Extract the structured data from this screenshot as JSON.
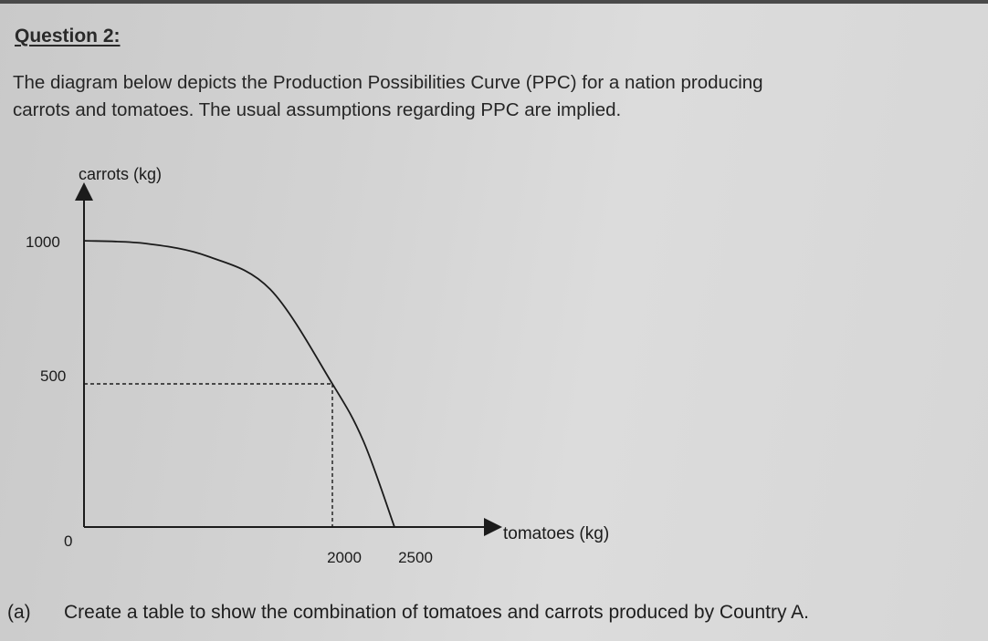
{
  "question": {
    "title": "Question 2:",
    "intro_lines": [
      "The diagram below depicts the Production Possibilities Curve (PPC) for a nation producing",
      "carrots and tomatoes. The usual assumptions regarding PPC are implied."
    ]
  },
  "chart_data": {
    "type": "line",
    "title": "",
    "xlabel": "tomatoes (kg)",
    "ylabel": "carrots (kg)",
    "origin_label": "0",
    "x_ticks": [
      "2000",
      "2500"
    ],
    "y_ticks": [
      "1000",
      "500"
    ],
    "xlim": [
      0,
      4800
    ],
    "ylim": [
      0,
      1150
    ],
    "grid": false,
    "series": [
      {
        "points": [
          {
            "x": 0,
            "y": 1000
          },
          {
            "x": 500,
            "y": 990
          },
          {
            "x": 1000,
            "y": 945
          },
          {
            "x": 1500,
            "y": 830
          },
          {
            "x": 2000,
            "y": 500
          },
          {
            "x": 2250,
            "y": 300
          },
          {
            "x": 2500,
            "y": 0
          }
        ]
      }
    ],
    "reference_point": {
      "x": 2000,
      "y": 500,
      "style": "dashed"
    }
  },
  "part_a": {
    "label": "(a)",
    "text": "Create a table to show the combination of tomatoes and carrots produced by Country A."
  }
}
